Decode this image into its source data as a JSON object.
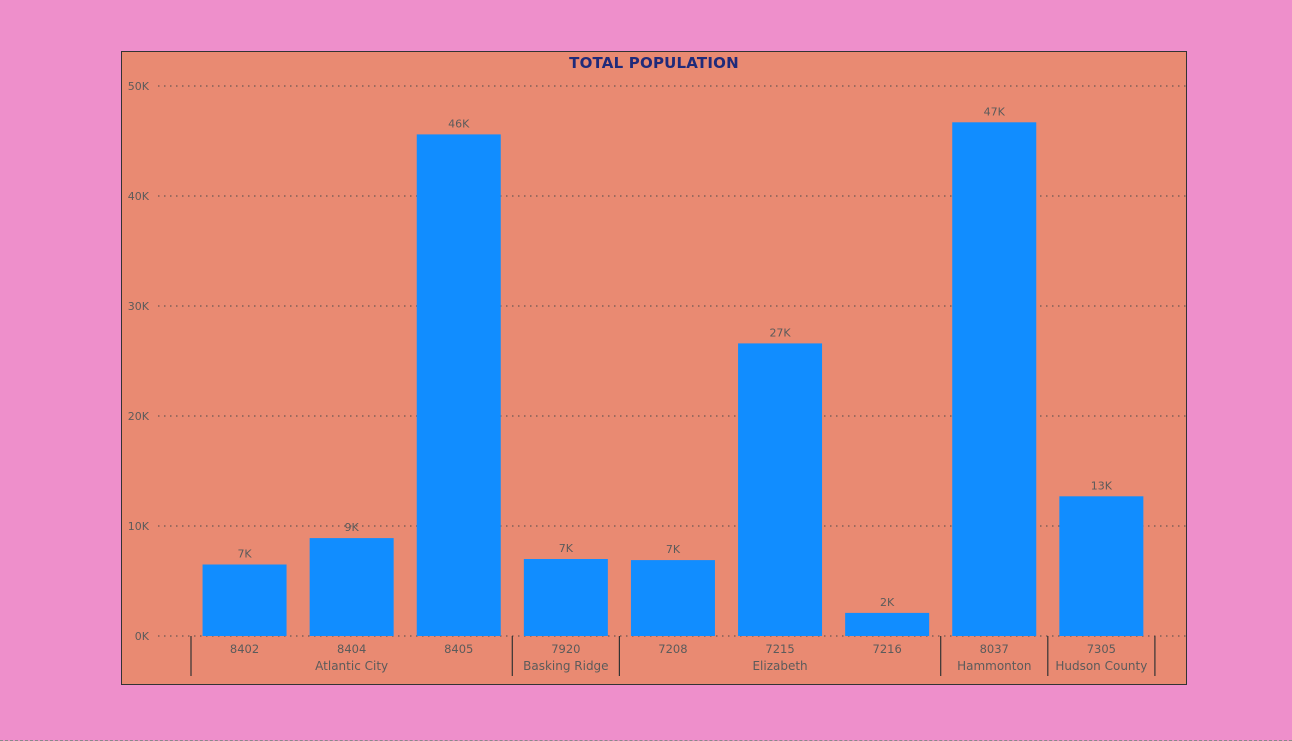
{
  "colors": {
    "page_bg": "#EE8FCB",
    "panel_bg": "#E98A72",
    "bar": "#118DFF",
    "title": "#1F2A7A",
    "text": "#5B5B5B"
  },
  "chart_data": {
    "type": "bar",
    "title": "TOTAL POPULATION",
    "xlabel": "",
    "ylabel": "",
    "ylim": [
      0,
      50000
    ],
    "yticks": [
      0,
      10000,
      20000,
      30000,
      40000,
      50000
    ],
    "ytick_labels": [
      "0K",
      "10K",
      "20K",
      "30K",
      "40K",
      "50K"
    ],
    "grid": true,
    "categories": [
      "8402",
      "8404",
      "8405",
      "7920",
      "7208",
      "7215",
      "7216",
      "8037",
      "7305"
    ],
    "values": [
      6500,
      8900,
      45600,
      7000,
      6900,
      26600,
      2100,
      46700,
      12700
    ],
    "data_labels": [
      "7K",
      "9K",
      "46K",
      "7K",
      "7K",
      "27K",
      "2K",
      "47K",
      "13K"
    ],
    "groups": [
      {
        "label": "Atlantic City",
        "count": 3
      },
      {
        "label": "Basking Ridge",
        "count": 1
      },
      {
        "label": "Elizabeth",
        "count": 3
      },
      {
        "label": "Hammonton",
        "count": 1
      },
      {
        "label": "Hudson County",
        "count": 1
      }
    ]
  }
}
